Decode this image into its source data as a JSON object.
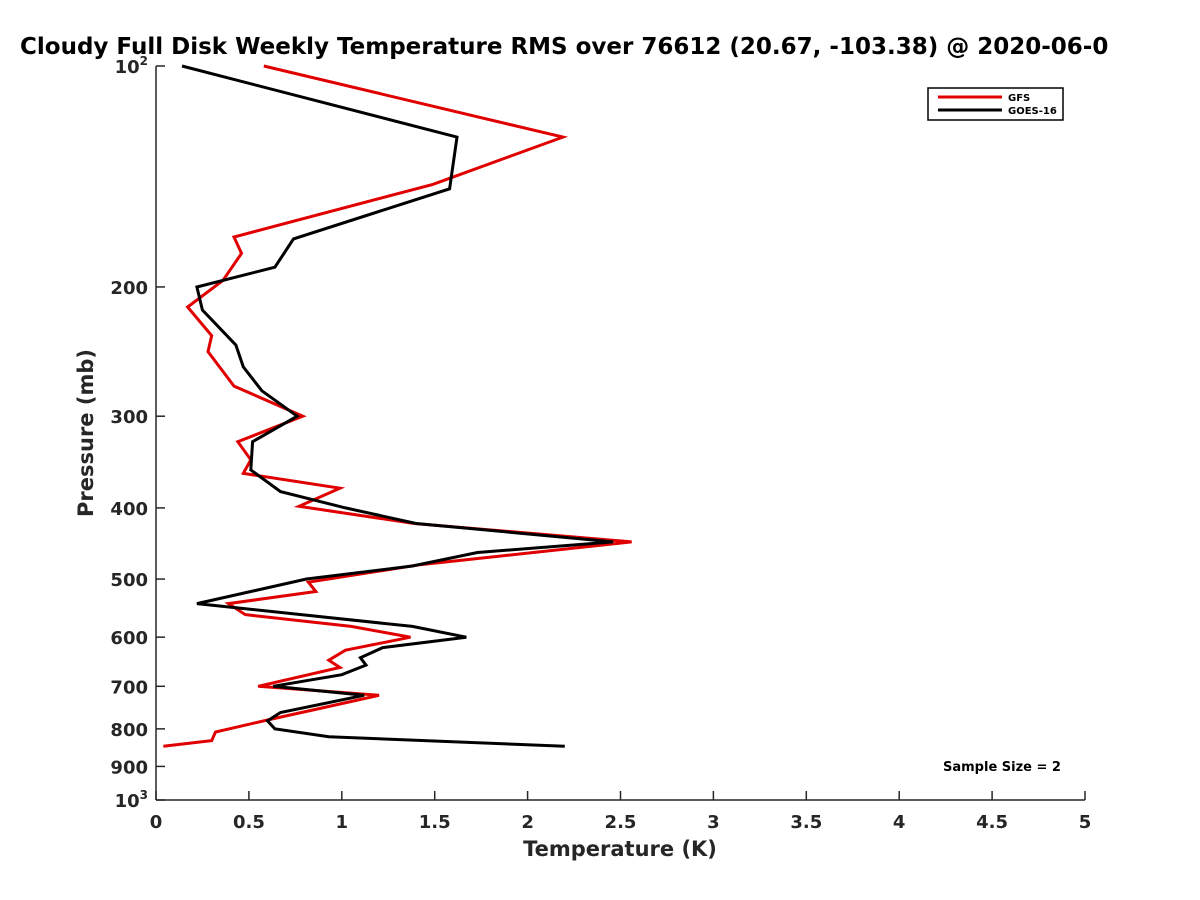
{
  "chart_data": {
    "type": "line",
    "title": "Cloudy Full Disk Weekly Temperature RMS over 76612 (20.67, -103.38) @ 2020-06-0",
    "xlabel": "Temperature (K)",
    "ylabel": "Pressure (mb)",
    "xlim": [
      0,
      5
    ],
    "ylim": [
      100,
      1000
    ],
    "y_scale": "log",
    "y_reversed": true,
    "grid": false,
    "legend_position": "top-right",
    "x_ticks": [
      {
        "value": 0,
        "label": "0"
      },
      {
        "value": 0.5,
        "label": "0.5"
      },
      {
        "value": 1,
        "label": "1"
      },
      {
        "value": 1.5,
        "label": "1.5"
      },
      {
        "value": 2,
        "label": "2"
      },
      {
        "value": 2.5,
        "label": "2.5"
      },
      {
        "value": 3,
        "label": "3"
      },
      {
        "value": 3.5,
        "label": "3.5"
      },
      {
        "value": 4,
        "label": "4"
      },
      {
        "value": 4.5,
        "label": "4.5"
      },
      {
        "value": 5,
        "label": "5"
      }
    ],
    "y_ticks": [
      {
        "value": 100,
        "base": "10",
        "sup": "2"
      },
      {
        "value": 200,
        "base": "200",
        "sup": ""
      },
      {
        "value": 300,
        "base": "300",
        "sup": ""
      },
      {
        "value": 400,
        "base": "400",
        "sup": ""
      },
      {
        "value": 500,
        "base": "500",
        "sup": ""
      },
      {
        "value": 600,
        "base": "600",
        "sup": ""
      },
      {
        "value": 700,
        "base": "700",
        "sup": ""
      },
      {
        "value": 800,
        "base": "800",
        "sup": ""
      },
      {
        "value": 900,
        "base": "900",
        "sup": ""
      },
      {
        "value": 1000,
        "base": "10",
        "sup": "3"
      }
    ],
    "series": [
      {
        "name": "GFS",
        "color": "#e00000",
        "points": [
          [
            0.58,
            100
          ],
          [
            2.19,
            125
          ],
          [
            1.49,
            145
          ],
          [
            0.42,
            171
          ],
          [
            0.46,
            180
          ],
          [
            0.36,
            196
          ],
          [
            0.17,
            213
          ],
          [
            0.3,
            233
          ],
          [
            0.28,
            245
          ],
          [
            0.42,
            273
          ],
          [
            0.79,
            300
          ],
          [
            0.44,
            325
          ],
          [
            0.51,
            344
          ],
          [
            0.47,
            359
          ],
          [
            0.99,
            376
          ],
          [
            0.77,
            398
          ],
          [
            1.39,
            420
          ],
          [
            2.56,
            445
          ],
          [
            1.42,
            478
          ],
          [
            0.82,
            505
          ],
          [
            0.86,
            520
          ],
          [
            0.39,
            540
          ],
          [
            0.48,
            559
          ],
          [
            1.05,
            580
          ],
          [
            1.37,
            600
          ],
          [
            1.02,
            625
          ],
          [
            0.93,
            645
          ],
          [
            0.99,
            660
          ],
          [
            0.55,
            700
          ],
          [
            1.2,
            720
          ],
          [
            0.99,
            740
          ],
          [
            0.6,
            778
          ],
          [
            0.32,
            808
          ],
          [
            0.3,
            830
          ],
          [
            0.04,
            845
          ]
        ]
      },
      {
        "name": "GOES-16",
        "color": "#000000",
        "points": [
          [
            0.14,
            100
          ],
          [
            1.62,
            125
          ],
          [
            1.58,
            147
          ],
          [
            0.74,
            172
          ],
          [
            0.64,
            188
          ],
          [
            0.22,
            200
          ],
          [
            0.25,
            215
          ],
          [
            0.43,
            240
          ],
          [
            0.47,
            257
          ],
          [
            0.57,
            277
          ],
          [
            0.76,
            300
          ],
          [
            0.52,
            325
          ],
          [
            0.51,
            355
          ],
          [
            0.67,
            380
          ],
          [
            1.02,
            400
          ],
          [
            1.4,
            420
          ],
          [
            2.46,
            445
          ],
          [
            1.73,
            460
          ],
          [
            1.38,
            480
          ],
          [
            0.81,
            500
          ],
          [
            0.22,
            540
          ],
          [
            1.38,
            580
          ],
          [
            1.67,
            600
          ],
          [
            1.22,
            620
          ],
          [
            1.1,
            640
          ],
          [
            1.13,
            655
          ],
          [
            1.0,
            675
          ],
          [
            0.63,
            700
          ],
          [
            1.12,
            720
          ],
          [
            0.67,
            760
          ],
          [
            0.6,
            780
          ],
          [
            0.64,
            800
          ],
          [
            0.93,
            820
          ],
          [
            2.2,
            845
          ]
        ]
      }
    ],
    "annotation": "Sample Size = 2"
  }
}
